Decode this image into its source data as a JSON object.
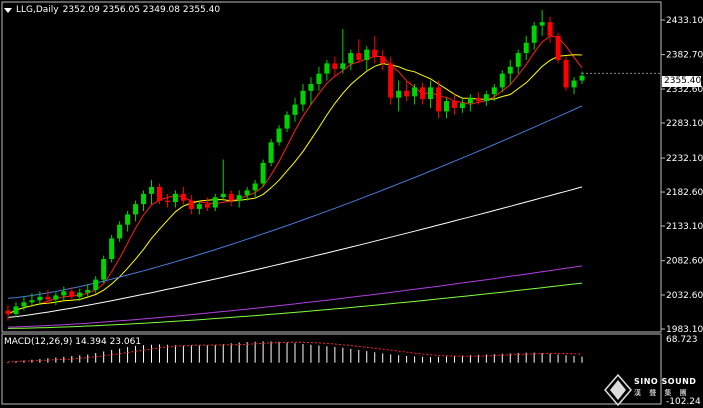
{
  "header": {
    "symbol": "LLG,Daily",
    "ohlc": "2352.09 2356.05 2349.08 2355.40"
  },
  "price_axis": {
    "ticks": [
      "2433.10",
      "2382.70",
      "2332.60",
      "2283.10",
      "2232.10",
      "2182.60",
      "2133.10",
      "2082.60",
      "2032.60",
      "1983.10"
    ],
    "current_price": "2355.40"
  },
  "macd": {
    "label": "MACD(12,26,9) 14.394 23.061",
    "top_value": "68.723",
    "bottom_value": "-102.24"
  },
  "logo": {
    "name": "SINO SOUND",
    "sub": "漢 聲 集 團"
  },
  "colors": {
    "bull": "#00d400",
    "bear": "#ff0000",
    "ma_fast": "#ff2020",
    "ma_mid": "#ffff00",
    "ma_long1": "#4a7ad8",
    "ma_long2": "#ffffff",
    "ma_long3": "#b040e0",
    "ma_long4": "#80ff40",
    "macd_signal": "#ff2020"
  },
  "chart_data": {
    "type": "candlestick",
    "price_range": [
      1983.1,
      2455
    ],
    "candles": [
      [
        2010,
        2018,
        1995,
        2005
      ],
      [
        2005,
        2022,
        2000,
        2016
      ],
      [
        2016,
        2030,
        2010,
        2022
      ],
      [
        2022,
        2035,
        2015,
        2025
      ],
      [
        2025,
        2038,
        2018,
        2030
      ],
      [
        2030,
        2040,
        2020,
        2026
      ],
      [
        2026,
        2036,
        2018,
        2032
      ],
      [
        2032,
        2045,
        2025,
        2038
      ],
      [
        2038,
        2044,
        2026,
        2030
      ],
      [
        2030,
        2042,
        2024,
        2036
      ],
      [
        2036,
        2048,
        2030,
        2040
      ],
      [
        2040,
        2060,
        2035,
        2055
      ],
      [
        2055,
        2090,
        2050,
        2085
      ],
      [
        2085,
        2120,
        2080,
        2115
      ],
      [
        2115,
        2140,
        2110,
        2135
      ],
      [
        2135,
        2155,
        2125,
        2150
      ],
      [
        2150,
        2170,
        2140,
        2165
      ],
      [
        2165,
        2185,
        2155,
        2180
      ],
      [
        2180,
        2200,
        2165,
        2190
      ],
      [
        2190,
        2195,
        2165,
        2170
      ],
      [
        2170,
        2180,
        2160,
        2168
      ],
      [
        2168,
        2185,
        2160,
        2180
      ],
      [
        2180,
        2190,
        2165,
        2170
      ],
      [
        2170,
        2178,
        2150,
        2158
      ],
      [
        2158,
        2170,
        2150,
        2165
      ],
      [
        2165,
        2175,
        2155,
        2160
      ],
      [
        2160,
        2180,
        2155,
        2175
      ],
      [
        2175,
        2230,
        2170,
        2180
      ],
      [
        2180,
        2185,
        2162,
        2170
      ],
      [
        2170,
        2185,
        2160,
        2178
      ],
      [
        2178,
        2190,
        2170,
        2185
      ],
      [
        2185,
        2200,
        2175,
        2195
      ],
      [
        2195,
        2230,
        2190,
        2225
      ],
      [
        2225,
        2260,
        2220,
        2255
      ],
      [
        2255,
        2280,
        2250,
        2275
      ],
      [
        2275,
        2300,
        2270,
        2295
      ],
      [
        2295,
        2320,
        2285,
        2310
      ],
      [
        2310,
        2340,
        2300,
        2330
      ],
      [
        2330,
        2350,
        2310,
        2340
      ],
      [
        2340,
        2365,
        2330,
        2355
      ],
      [
        2355,
        2375,
        2345,
        2370
      ],
      [
        2370,
        2380,
        2350,
        2362
      ],
      [
        2362,
        2420,
        2355,
        2370
      ],
      [
        2370,
        2390,
        2360,
        2385
      ],
      [
        2385,
        2405,
        2370,
        2375
      ],
      [
        2375,
        2395,
        2360,
        2390
      ],
      [
        2390,
        2410,
        2370,
        2380
      ],
      [
        2380,
        2390,
        2360,
        2370
      ],
      [
        2370,
        2380,
        2310,
        2320
      ],
      [
        2320,
        2345,
        2300,
        2330
      ],
      [
        2330,
        2345,
        2315,
        2322
      ],
      [
        2322,
        2340,
        2310,
        2335
      ],
      [
        2335,
        2342,
        2310,
        2318
      ],
      [
        2318,
        2345,
        2305,
        2335
      ],
      [
        2335,
        2345,
        2290,
        2300
      ],
      [
        2300,
        2320,
        2290,
        2315
      ],
      [
        2315,
        2325,
        2295,
        2305
      ],
      [
        2305,
        2318,
        2298,
        2312
      ],
      [
        2312,
        2325,
        2300,
        2320
      ],
      [
        2320,
        2328,
        2310,
        2315
      ],
      [
        2315,
        2330,
        2308,
        2325
      ],
      [
        2325,
        2340,
        2315,
        2335
      ],
      [
        2335,
        2360,
        2328,
        2355
      ],
      [
        2355,
        2375,
        2340,
        2365
      ],
      [
        2365,
        2390,
        2355,
        2385
      ],
      [
        2385,
        2410,
        2375,
        2400
      ],
      [
        2400,
        2430,
        2390,
        2425
      ],
      [
        2425,
        2448,
        2410,
        2430
      ],
      [
        2430,
        2438,
        2400,
        2410
      ],
      [
        2410,
        2415,
        2370,
        2375
      ],
      [
        2375,
        2380,
        2330,
        2335
      ],
      [
        2335,
        2350,
        2325,
        2345
      ],
      [
        2345,
        2358,
        2340,
        2352
      ]
    ],
    "macd_hist": [
      2,
      4,
      6,
      8,
      10,
      12,
      14,
      16,
      18,
      20,
      22,
      26,
      30,
      34,
      38,
      42,
      45,
      47,
      48,
      49,
      48,
      47,
      46,
      46,
      46,
      47,
      48,
      50,
      52,
      54,
      55,
      56,
      57,
      57,
      56,
      54,
      52,
      50,
      48,
      46,
      44,
      42,
      40,
      37,
      34,
      31,
      28,
      25,
      22,
      20,
      18,
      17,
      16,
      15,
      16,
      17,
      18,
      19,
      20,
      21,
      22,
      23,
      24,
      25,
      26,
      27,
      27,
      26,
      24,
      22,
      20,
      18,
      16
    ],
    "macd_range": [
      -102.24,
      68.723
    ]
  }
}
